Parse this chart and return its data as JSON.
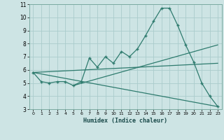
{
  "xlabel": "Humidex (Indice chaleur)",
  "bg_color": "#cde4e4",
  "grid_color": "#aacccc",
  "line_color": "#2e7b6e",
  "xlim": [
    -0.5,
    23.5
  ],
  "ylim": [
    3,
    11
  ],
  "yticks": [
    3,
    4,
    5,
    6,
    7,
    8,
    9,
    10,
    11
  ],
  "xticks": [
    0,
    1,
    2,
    3,
    4,
    5,
    6,
    7,
    8,
    9,
    10,
    11,
    12,
    13,
    14,
    15,
    16,
    17,
    18,
    19,
    20,
    21,
    22,
    23
  ],
  "series": [
    [
      0,
      5.8
    ],
    [
      1,
      5.1
    ],
    [
      2,
      5.0
    ],
    [
      3,
      5.1
    ],
    [
      4,
      5.1
    ],
    [
      5,
      4.8
    ],
    [
      6,
      5.1
    ],
    [
      7,
      6.9
    ],
    [
      8,
      6.2
    ],
    [
      9,
      7.0
    ],
    [
      10,
      6.5
    ],
    [
      11,
      7.4
    ],
    [
      12,
      7.0
    ],
    [
      13,
      7.6
    ],
    [
      14,
      8.6
    ],
    [
      15,
      9.7
    ],
    [
      16,
      10.7
    ],
    [
      17,
      10.7
    ],
    [
      18,
      9.4
    ],
    [
      19,
      7.9
    ],
    [
      20,
      6.6
    ],
    [
      21,
      5.0
    ],
    [
      22,
      4.0
    ],
    [
      23,
      3.2
    ]
  ],
  "line1": [
    [
      0,
      5.8
    ],
    [
      23,
      3.2
    ]
  ],
  "line2": [
    [
      0,
      5.8
    ],
    [
      23,
      6.5
    ]
  ],
  "line3": [
    [
      5,
      4.8
    ],
    [
      23,
      7.9
    ]
  ]
}
